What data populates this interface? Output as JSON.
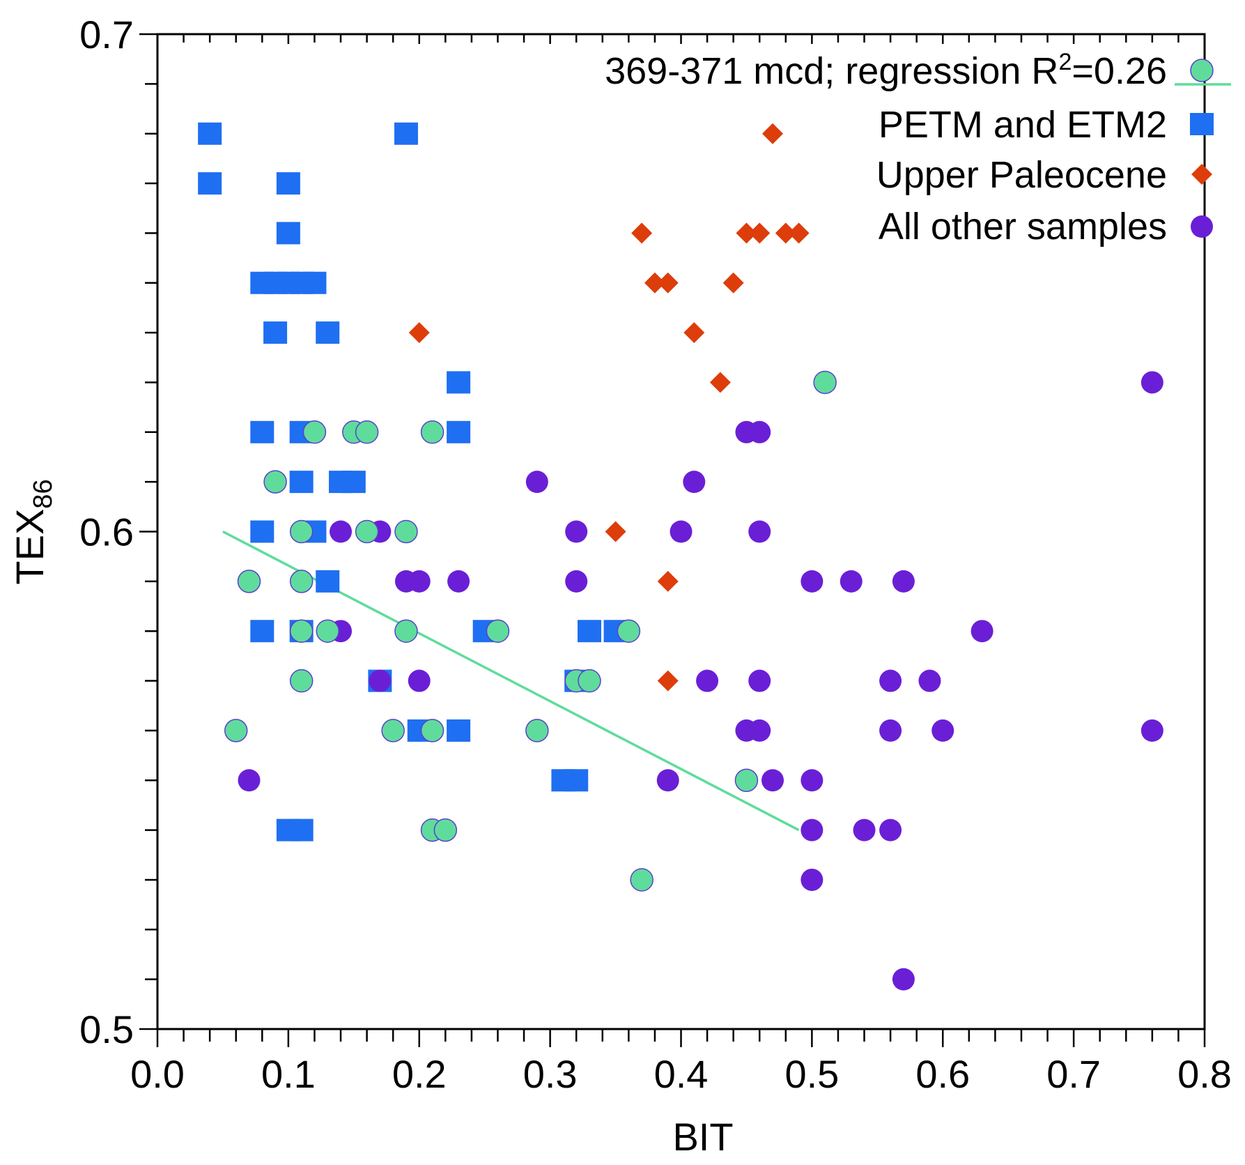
{
  "chart_data": {
    "type": "scatter",
    "title": "",
    "xlabel": "BIT",
    "ylabel": "TEX",
    "ylabel_sub": "86",
    "xlim": [
      0.0,
      0.8
    ],
    "ylim": [
      0.5,
      0.7
    ],
    "xticks": [
      "0.0",
      "0.1",
      "0.2",
      "0.3",
      "0.4",
      "0.5",
      "0.6",
      "0.7",
      "0.8"
    ],
    "yticks": [
      "0.5",
      "0.6",
      "0.7"
    ],
    "grid": false,
    "legend_position": "top-right",
    "colors": {
      "petm": "#1f6ff2",
      "upper": "#dd3d0a",
      "other": "#6a1fd6",
      "mcd": "#5fdc9b",
      "mcd_stroke": "#5a3fd0"
    },
    "regression": {
      "label_prefix": "369-371 mcd; regression R",
      "label_sup": "2",
      "label_suffix": "=0.26",
      "r_squared": 0.26,
      "x": [
        0.05,
        0.49
      ],
      "y": [
        0.6,
        0.54
      ]
    },
    "series": [
      {
        "name": "PETM and ETM2",
        "key": "petm",
        "marker": "square",
        "points": [
          [
            0.04,
            0.68
          ],
          [
            0.04,
            0.67
          ],
          [
            0.19,
            0.68
          ],
          [
            0.1,
            0.67
          ],
          [
            0.1,
            0.66
          ],
          [
            0.08,
            0.65
          ],
          [
            0.09,
            0.65
          ],
          [
            0.1,
            0.65
          ],
          [
            0.11,
            0.65
          ],
          [
            0.12,
            0.65
          ],
          [
            0.09,
            0.64
          ],
          [
            0.13,
            0.64
          ],
          [
            0.23,
            0.63
          ],
          [
            0.08,
            0.62
          ],
          [
            0.11,
            0.62
          ],
          [
            0.23,
            0.62
          ],
          [
            0.11,
            0.61
          ],
          [
            0.14,
            0.61
          ],
          [
            0.15,
            0.61
          ],
          [
            0.08,
            0.6
          ],
          [
            0.12,
            0.6
          ],
          [
            0.13,
            0.59
          ],
          [
            0.08,
            0.58
          ],
          [
            0.11,
            0.58
          ],
          [
            0.25,
            0.58
          ],
          [
            0.33,
            0.58
          ],
          [
            0.35,
            0.58
          ],
          [
            0.17,
            0.57
          ],
          [
            0.32,
            0.57
          ],
          [
            0.2,
            0.56
          ],
          [
            0.23,
            0.56
          ],
          [
            0.31,
            0.55
          ],
          [
            0.32,
            0.55
          ],
          [
            0.1,
            0.54
          ],
          [
            0.11,
            0.54
          ]
        ]
      },
      {
        "name": "Upper Paleocene",
        "key": "upper",
        "marker": "diamond",
        "points": [
          [
            0.47,
            0.68
          ],
          [
            0.37,
            0.66
          ],
          [
            0.45,
            0.66
          ],
          [
            0.46,
            0.66
          ],
          [
            0.48,
            0.66
          ],
          [
            0.49,
            0.66
          ],
          [
            0.38,
            0.65
          ],
          [
            0.39,
            0.65
          ],
          [
            0.44,
            0.65
          ],
          [
            0.2,
            0.64
          ],
          [
            0.41,
            0.64
          ],
          [
            0.43,
            0.63
          ],
          [
            0.35,
            0.6
          ],
          [
            0.39,
            0.59
          ],
          [
            0.39,
            0.57
          ]
        ]
      },
      {
        "name": "All other samples",
        "key": "other",
        "marker": "circle",
        "points": [
          [
            0.76,
            0.63
          ],
          [
            0.45,
            0.62
          ],
          [
            0.46,
            0.62
          ],
          [
            0.29,
            0.61
          ],
          [
            0.41,
            0.61
          ],
          [
            0.14,
            0.6
          ],
          [
            0.17,
            0.6
          ],
          [
            0.32,
            0.6
          ],
          [
            0.4,
            0.6
          ],
          [
            0.46,
            0.6
          ],
          [
            0.19,
            0.59
          ],
          [
            0.2,
            0.59
          ],
          [
            0.23,
            0.59
          ],
          [
            0.32,
            0.59
          ],
          [
            0.5,
            0.59
          ],
          [
            0.53,
            0.59
          ],
          [
            0.57,
            0.59
          ],
          [
            0.14,
            0.58
          ],
          [
            0.63,
            0.58
          ],
          [
            0.17,
            0.57
          ],
          [
            0.2,
            0.57
          ],
          [
            0.42,
            0.57
          ],
          [
            0.46,
            0.57
          ],
          [
            0.56,
            0.57
          ],
          [
            0.59,
            0.57
          ],
          [
            0.45,
            0.56
          ],
          [
            0.46,
            0.56
          ],
          [
            0.56,
            0.56
          ],
          [
            0.6,
            0.56
          ],
          [
            0.76,
            0.56
          ],
          [
            0.07,
            0.55
          ],
          [
            0.39,
            0.55
          ],
          [
            0.47,
            0.55
          ],
          [
            0.5,
            0.55
          ],
          [
            0.5,
            0.54
          ],
          [
            0.54,
            0.54
          ],
          [
            0.56,
            0.54
          ],
          [
            0.5,
            0.53
          ],
          [
            0.57,
            0.51
          ]
        ]
      },
      {
        "name": "369-371 mcd",
        "key": "mcd",
        "marker": "circle-outlined",
        "points": [
          [
            0.51,
            0.63
          ],
          [
            0.12,
            0.62
          ],
          [
            0.15,
            0.62
          ],
          [
            0.16,
            0.62
          ],
          [
            0.21,
            0.62
          ],
          [
            0.09,
            0.61
          ],
          [
            0.11,
            0.6
          ],
          [
            0.16,
            0.6
          ],
          [
            0.19,
            0.6
          ],
          [
            0.07,
            0.59
          ],
          [
            0.11,
            0.59
          ],
          [
            0.11,
            0.58
          ],
          [
            0.13,
            0.58
          ],
          [
            0.19,
            0.58
          ],
          [
            0.26,
            0.58
          ],
          [
            0.36,
            0.58
          ],
          [
            0.11,
            0.57
          ],
          [
            0.32,
            0.57
          ],
          [
            0.33,
            0.57
          ],
          [
            0.06,
            0.56
          ],
          [
            0.18,
            0.56
          ],
          [
            0.21,
            0.56
          ],
          [
            0.29,
            0.56
          ],
          [
            0.45,
            0.55
          ],
          [
            0.21,
            0.54
          ],
          [
            0.22,
            0.54
          ],
          [
            0.37,
            0.53
          ]
        ]
      }
    ]
  }
}
